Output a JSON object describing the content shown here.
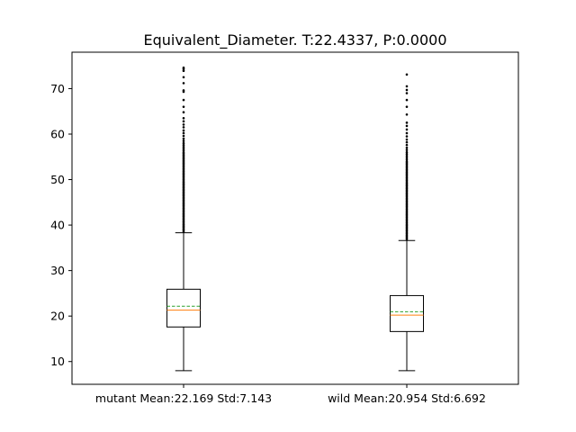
{
  "chart_data": {
    "type": "boxplot",
    "title": "Equivalent_Diameter. T:22.4337, P:0.0000",
    "xlabel": "",
    "ylabel": "",
    "ylim": [
      5,
      78
    ],
    "yticks": [
      10,
      20,
      30,
      40,
      50,
      60,
      70
    ],
    "grid": false,
    "legend": "none",
    "colors": {
      "box": "#000000",
      "median": "#ff7f0e",
      "mean": "#2ca02c",
      "flier": "#000000"
    },
    "categories": [
      "mutant Mean:22.169 Std:7.143",
      "wild Mean:20.954 Std:6.692"
    ],
    "boxes": [
      {
        "label": "mutant Mean:22.169 Std:7.143",
        "whisker_low": 8.0,
        "q1": 17.6,
        "median": 21.3,
        "mean": 22.169,
        "q3": 25.9,
        "whisker_high": 38.3,
        "fliers": [
          38.6,
          38.9,
          39.2,
          39.5,
          39.8,
          40.1,
          40.4,
          40.7,
          41.0,
          41.3,
          41.6,
          41.9,
          42.2,
          42.5,
          42.8,
          43.1,
          43.4,
          43.7,
          44.0,
          44.3,
          44.6,
          44.9,
          45.2,
          45.5,
          45.8,
          46.1,
          46.4,
          46.7,
          47.0,
          47.3,
          47.6,
          47.9,
          48.2,
          48.5,
          48.8,
          49.1,
          49.4,
          49.7,
          50.0,
          50.3,
          50.6,
          50.9,
          51.2,
          51.5,
          51.8,
          52.1,
          52.4,
          52.7,
          53.0,
          53.3,
          53.6,
          53.9,
          54.2,
          54.5,
          54.8,
          55.1,
          55.4,
          55.7,
          56.0,
          56.4,
          56.8,
          57.2,
          57.6,
          58.0,
          58.5,
          59.0,
          59.6,
          60.2,
          60.8,
          61.5,
          62.1,
          62.8,
          63.5,
          64.8,
          66.0,
          67.5,
          69.3,
          69.6,
          71.2,
          72.5,
          73.9,
          74.3,
          74.6
        ]
      },
      {
        "label": "wild Mean:20.954 Std:6.692",
        "whisker_low": 8.0,
        "q1": 16.6,
        "median": 20.2,
        "mean": 20.954,
        "q3": 24.5,
        "whisker_high": 36.6,
        "fliers": [
          36.9,
          37.2,
          37.5,
          37.8,
          38.1,
          38.4,
          38.7,
          39.0,
          39.3,
          39.6,
          39.9,
          40.2,
          40.5,
          40.8,
          41.1,
          41.4,
          41.7,
          42.0,
          42.3,
          42.6,
          42.9,
          43.2,
          43.5,
          43.8,
          44.1,
          44.4,
          44.7,
          45.0,
          45.3,
          45.6,
          45.9,
          46.2,
          46.5,
          46.8,
          47.1,
          47.4,
          47.7,
          48.0,
          48.3,
          48.6,
          48.9,
          49.2,
          49.5,
          49.8,
          50.1,
          50.4,
          50.7,
          51.0,
          51.3,
          51.6,
          51.9,
          52.2,
          52.5,
          52.8,
          53.1,
          53.4,
          53.7,
          54.0,
          54.4,
          54.8,
          55.2,
          55.6,
          56.0,
          56.5,
          57.0,
          57.6,
          58.2,
          58.8,
          59.5,
          60.2,
          61.0,
          61.8,
          62.5,
          64.3,
          66.0,
          67.5,
          69.0,
          69.7,
          70.5,
          73.1
        ]
      }
    ]
  }
}
